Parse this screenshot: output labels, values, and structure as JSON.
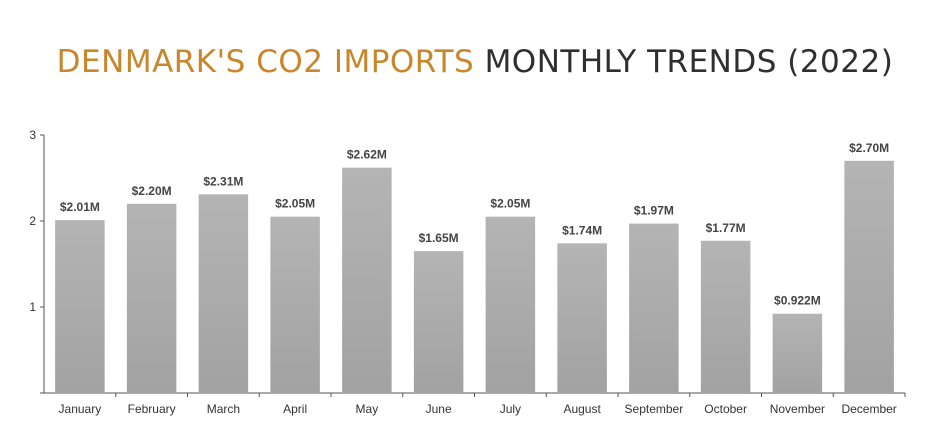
{
  "title": {
    "highlight": "DENMARK'S CO2 IMPORTS",
    "rest": "MONTHLY TRENDS (2022)"
  },
  "colors": {
    "title_highlight": "#c8872b",
    "title_text": "#2f2f2f",
    "bar": "#a6a6a6",
    "axis": "#555555",
    "background": "#ffffff"
  },
  "chart_data": {
    "type": "bar",
    "categories": [
      "January",
      "February",
      "March",
      "April",
      "May",
      "June",
      "July",
      "August",
      "September",
      "October",
      "November",
      "December"
    ],
    "values": [
      2.01,
      2.2,
      2.31,
      2.05,
      2.62,
      1.65,
      2.05,
      1.74,
      1.97,
      1.77,
      0.922,
      2.7
    ],
    "data_labels": [
      "$2.01M",
      "$2.20M",
      "$2.31M",
      "$2.05M",
      "$2.62M",
      "$1.65M",
      "$2.05M",
      "$1.74M",
      "$1.97M",
      "$1.77M",
      "$0.922M",
      "$2.70M"
    ],
    "yticks": [
      1,
      2,
      3
    ],
    "ylim": [
      0,
      3
    ],
    "grid": false,
    "legend": "none"
  }
}
